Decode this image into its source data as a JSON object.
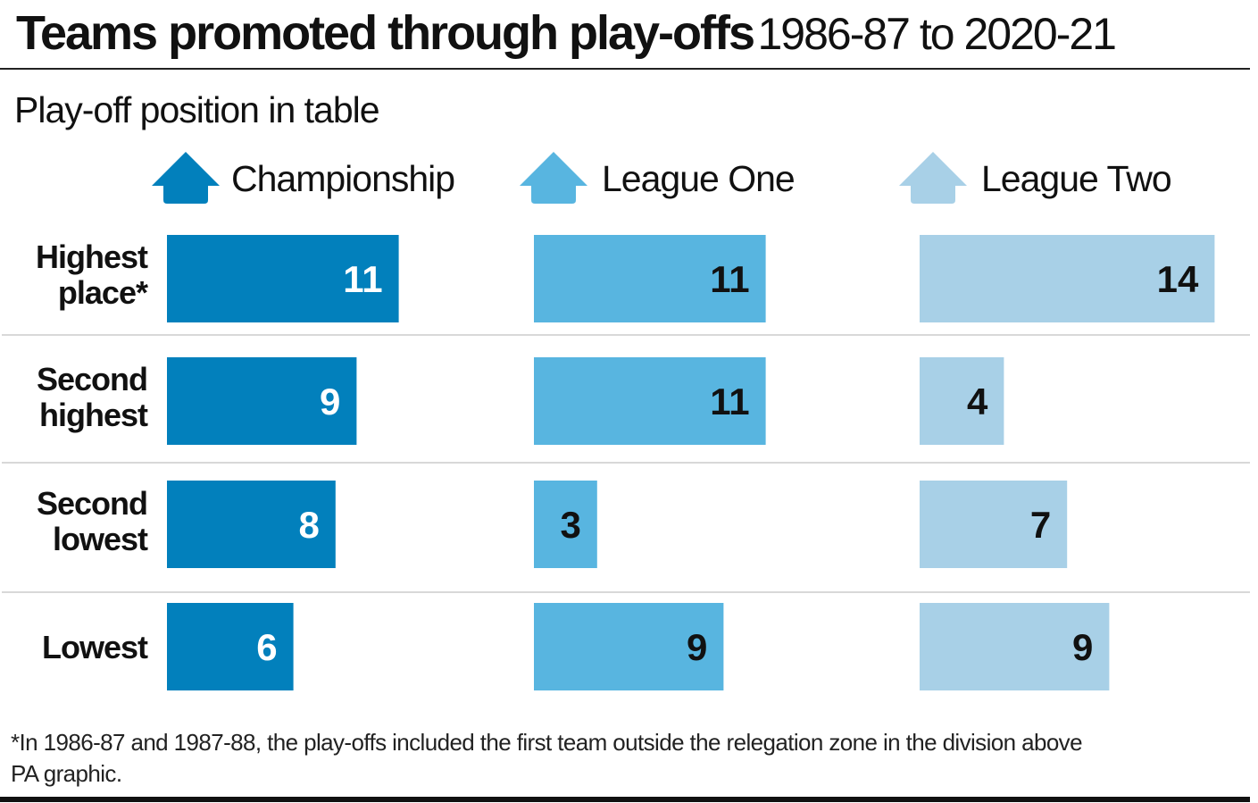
{
  "title": {
    "bold": "Teams promoted through play-offs",
    "light": "1986-87 to 2020-21"
  },
  "subtitle": "Play-off position in table",
  "footnote": {
    "line1": "*In 1986-87 and 1987-88, the play-offs included the first team outside the relegation zone in the division above",
    "line2": "PA graphic."
  },
  "row_labels": [
    [
      "Highest",
      "place*"
    ],
    [
      "Second",
      "highest"
    ],
    [
      "Second",
      "lowest"
    ],
    [
      "",
      "Lowest"
    ]
  ],
  "legend": [
    {
      "label": "Championship",
      "icon": "up-arrow-icon"
    },
    {
      "label": "League One",
      "icon": "up-arrow-icon"
    },
    {
      "label": "League Two",
      "icon": "up-arrow-icon"
    }
  ],
  "chart_data": {
    "type": "bar",
    "orientation": "horizontal",
    "categories": [
      "Highest place*",
      "Second highest",
      "Second lowest",
      "Lowest"
    ],
    "series": [
      {
        "name": "Championship",
        "values": [
          11,
          9,
          8,
          6
        ],
        "color": "#0280bc",
        "label_color": "#ffffff"
      },
      {
        "name": "League One",
        "values": [
          11,
          11,
          3,
          9
        ],
        "color": "#58b5e0",
        "label_color": "#111111"
      },
      {
        "name": "League Two",
        "values": [
          14,
          4,
          7,
          9
        ],
        "color": "#a8d0e7",
        "label_color": "#111111"
      }
    ],
    "xlim": [
      0,
      14
    ],
    "grid": false,
    "legend_position": "top"
  }
}
